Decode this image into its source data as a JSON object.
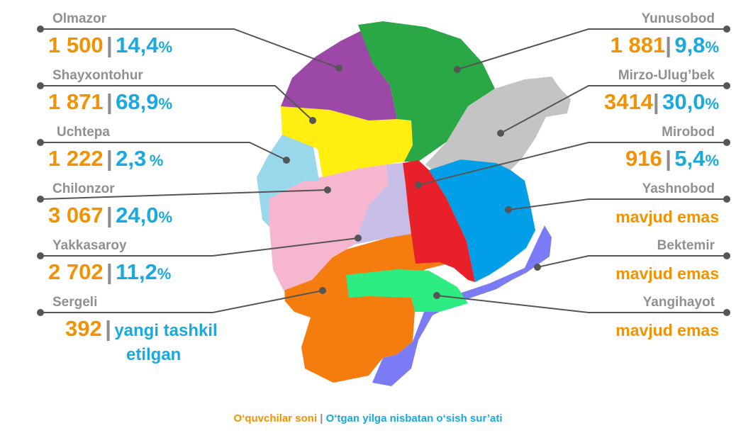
{
  "districts": {
    "olmazor": {
      "name": "Olmazor",
      "count": "1 500",
      "sep": "|",
      "pct": "14,4",
      "unit": "%",
      "color": "#9b48a6"
    },
    "shayxontohur": {
      "name": "Shayxontohur",
      "count": "1 871",
      "sep": "|",
      "pct": "68,9",
      "unit": "%",
      "color": "#ffee10"
    },
    "uchtepa": {
      "name": "Uchtepa",
      "count": "1 222",
      "sep": "|",
      "pct": "2,3",
      "unit": "%",
      "color": "#99d8ea"
    },
    "chilonzor": {
      "name": "Chilonzor",
      "count": "3 067",
      "sep": "|",
      "pct": "24,0",
      "unit": "%",
      "color": "#f7b6cf"
    },
    "yakkasaroy": {
      "name": "Yakkasaroy",
      "count": "2 702",
      "sep": "|",
      "pct": "11,2",
      "unit": "%",
      "color": "#c7bde6"
    },
    "sergeli": {
      "name": "Sergeli",
      "count": "392",
      "sep": "|",
      "note_line1": "yangi tashkil",
      "note_line2": "etilgan",
      "color": "#f57d10"
    },
    "yunusobod": {
      "name": "Yunusobod",
      "count": "1 881",
      "sep": "|",
      "pct": "9,8",
      "unit": "%",
      "color": "#2aa845"
    },
    "mirzo_ulugbek": {
      "name": "Mirzo-Ulug’bek",
      "count": "3414",
      "sep": "|",
      "pct": "30,0",
      "unit": "%",
      "color": "#c4c4c4"
    },
    "mirobod": {
      "name": "Mirobod",
      "count": "916",
      "sep": "|",
      "pct": "5,4",
      "unit": "%",
      "color": "#e8202a"
    },
    "yashnobod": {
      "name": "Yashnobod",
      "status": "mavjud emas",
      "color": "#009fe8"
    },
    "bektemir": {
      "name": "Bektemir",
      "status": "mavjud emas",
      "color": "#7b7cf5"
    },
    "yangihayot": {
      "name": "Yangihayot",
      "status": "mavjud emas",
      "color": "#2ded82"
    }
  },
  "caption": {
    "part1": "O‘quvchilar soni",
    "sep": "|",
    "part2": "O‘tgan yilga nisbatan o‘sish sur’ati"
  }
}
